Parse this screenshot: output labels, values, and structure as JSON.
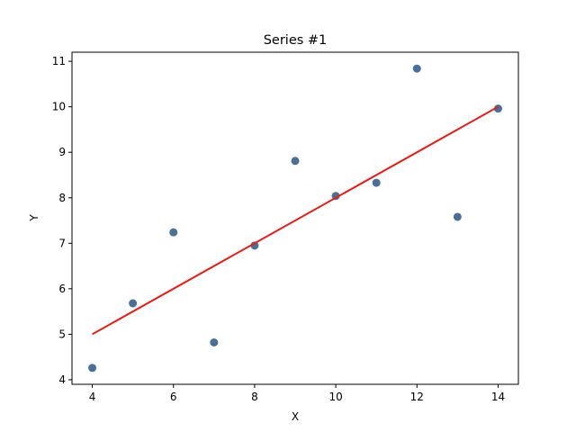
{
  "chart_data": {
    "type": "scatter",
    "title": "Series #1",
    "xlabel": "X",
    "ylabel": "Y",
    "xlim": [
      3.5,
      14.5
    ],
    "ylim": [
      3.9,
      11.2
    ],
    "xticks": [
      4,
      6,
      8,
      10,
      12,
      14
    ],
    "yticks": [
      4,
      5,
      6,
      7,
      8,
      9,
      10,
      11
    ],
    "grid": false,
    "series": [
      {
        "kind": "scatter",
        "color": "#4a7096",
        "x": [
          4,
          5,
          6,
          7,
          8,
          9,
          10,
          11,
          12,
          13,
          14
        ],
        "y": [
          4.26,
          5.68,
          7.24,
          4.82,
          6.95,
          8.81,
          8.04,
          8.33,
          10.84,
          7.58,
          9.96
        ]
      },
      {
        "kind": "line",
        "color": "#e0201b",
        "x": [
          4,
          14
        ],
        "y": [
          5.0,
          10.0
        ]
      }
    ]
  }
}
